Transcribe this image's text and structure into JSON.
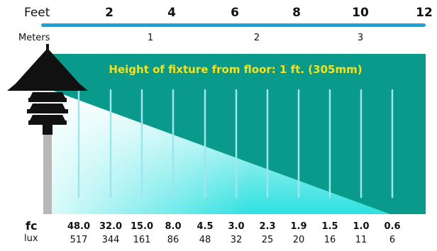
{
  "scale": {
    "feet_label": "Feet",
    "feet_ticks": [
      "2",
      "4",
      "6",
      "8",
      "10",
      "12"
    ],
    "meters_label": "Meters",
    "meters_ticks": [
      "1",
      "2",
      "3"
    ]
  },
  "diagram": {
    "title": "Height of fixture from floor: 1 ft. (305mm)",
    "background_color": "#0a9a8c",
    "beam_color": "#2ee0e0",
    "scale_bar_color": "#1aa3d9"
  },
  "readings": {
    "fc_label": "fc",
    "lux_label": "lux",
    "fc": [
      "48.0",
      "32.0",
      "15.0",
      "8.0",
      "4.5",
      "3.0",
      "2.3",
      "1.9",
      "1.5",
      "1.0",
      "0.6"
    ],
    "lux": [
      "517",
      "344",
      "161",
      "86",
      "48",
      "32",
      "25",
      "20",
      "16",
      "11",
      "6"
    ]
  }
}
